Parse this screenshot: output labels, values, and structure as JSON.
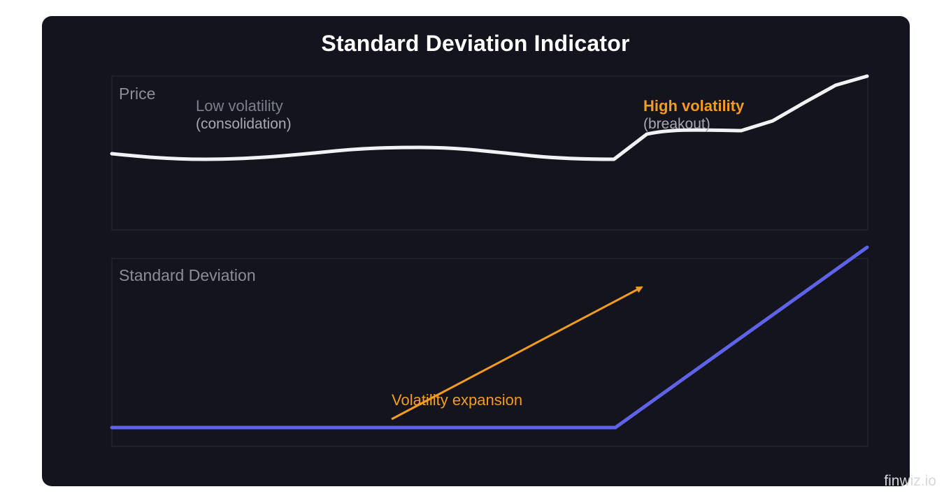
{
  "title": "Standard Deviation Indicator",
  "panels": {
    "price": {
      "label": "Price"
    },
    "std_dev": {
      "label": "Standard Deviation"
    }
  },
  "annotations": {
    "low_volatility": {
      "title": "Low volatility",
      "subtitle": "(consolidation)"
    },
    "high_volatility": {
      "title": "High volatility",
      "subtitle": "(breakout)"
    },
    "expansion": "Volatility expansion"
  },
  "watermark": "finwiz.io",
  "colors": {
    "background": "#13141d",
    "price_line": "#f2f2f5",
    "std_dev_line": "#5f63e8",
    "accent": "#f29c1f",
    "panel_border": "#1f202b"
  }
}
